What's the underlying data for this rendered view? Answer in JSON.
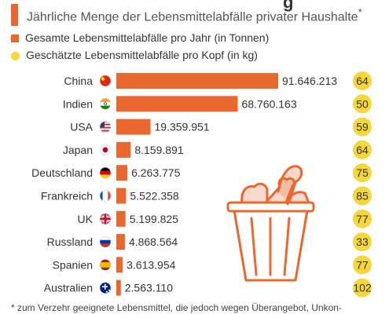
{
  "header": {
    "title_fragment": "g",
    "subtitle": "Jährliche Menge der Lebensmittelabfälle privater Haushalte",
    "subtitle_mark": "*"
  },
  "legend": {
    "total": "Gesamte Lebensmittelabfälle pro Jahr (in Tonnen)",
    "per_capita": "Geschätzte Lebensmittelabfälle pro Kopf (in kg)"
  },
  "colors": {
    "bar": "#e8682f",
    "circle": "#f5d73b",
    "illustration": "#e8682f"
  },
  "chart_data": {
    "type": "bar",
    "orientation": "horizontal",
    "categories": [
      "China",
      "Indien",
      "USA",
      "Japan",
      "Deutschland",
      "Frankreich",
      "UK",
      "Russland",
      "Spanien",
      "Australien"
    ],
    "series": [
      {
        "name": "Gesamte Lebensmittelabfälle pro Jahr (in Tonnen)",
        "values": [
          91646213,
          68760163,
          19359951,
          8159891,
          6263775,
          5522358,
          5199825,
          4868564,
          3613954,
          2563110
        ],
        "labels": [
          "91.646.213",
          "68.760.163",
          "19.359.951",
          "8.159.891",
          "6.263.775",
          "5.522.358",
          "5.199.825",
          "4.868.564",
          "3.613.954",
          "2.563.110"
        ]
      },
      {
        "name": "Geschätzte Lebensmittelabfälle pro Kopf (in kg)",
        "values": [
          64,
          50,
          59,
          64,
          75,
          85,
          77,
          33,
          77,
          102
        ],
        "labels": [
          "64",
          "50",
          "59",
          "64",
          "75",
          "85",
          "77",
          "33",
          "77",
          "102"
        ]
      }
    ],
    "flags": [
      "china-flag-icon",
      "india-flag-icon",
      "usa-flag-icon",
      "japan-flag-icon",
      "germany-flag-icon",
      "france-flag-icon",
      "uk-flag-icon",
      "russia-flag-icon",
      "spain-flag-icon",
      "australia-flag-icon"
    ],
    "xlim": [
      0,
      91646213
    ],
    "grid": false,
    "legend_position": "top-left"
  },
  "footnote": "* zum Verzehr geeignete Lebensmittel, die jedoch wegen Überangebot, Unkon-"
}
